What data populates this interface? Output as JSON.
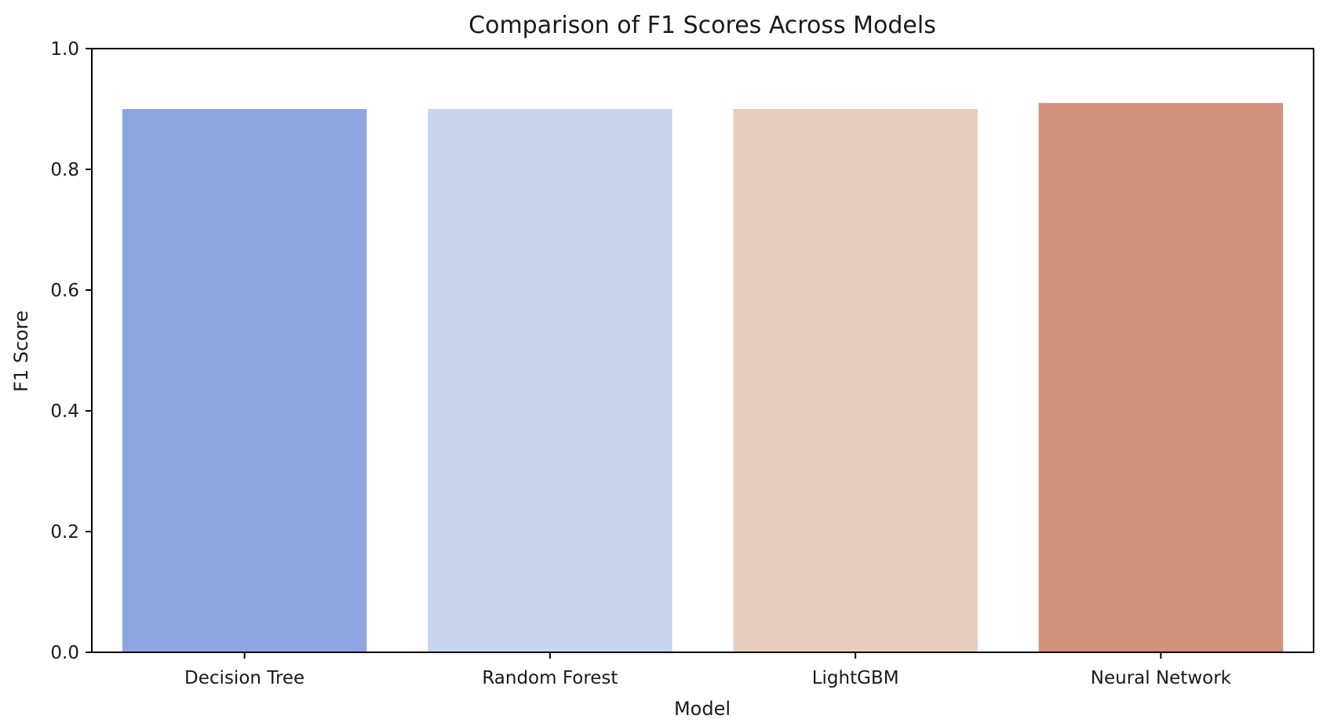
{
  "chart_data": {
    "type": "bar",
    "title": "Comparison of F1 Scores Across Models",
    "xlabel": "Model",
    "ylabel": "F1 Score",
    "categories": [
      "Decision Tree",
      "Random Forest",
      "LightGBM",
      "Neural Network"
    ],
    "values": [
      0.9,
      0.9,
      0.9,
      0.91
    ],
    "colors": [
      "#8fa4e2",
      "#c9d4ee",
      "#e6cdbf",
      "#d2917a"
    ],
    "ylim": [
      0,
      1.0
    ],
    "yticks": [
      "0.0",
      "0.2",
      "0.4",
      "0.6",
      "0.8",
      "1.0"
    ],
    "grid": false,
    "legend": "none"
  }
}
